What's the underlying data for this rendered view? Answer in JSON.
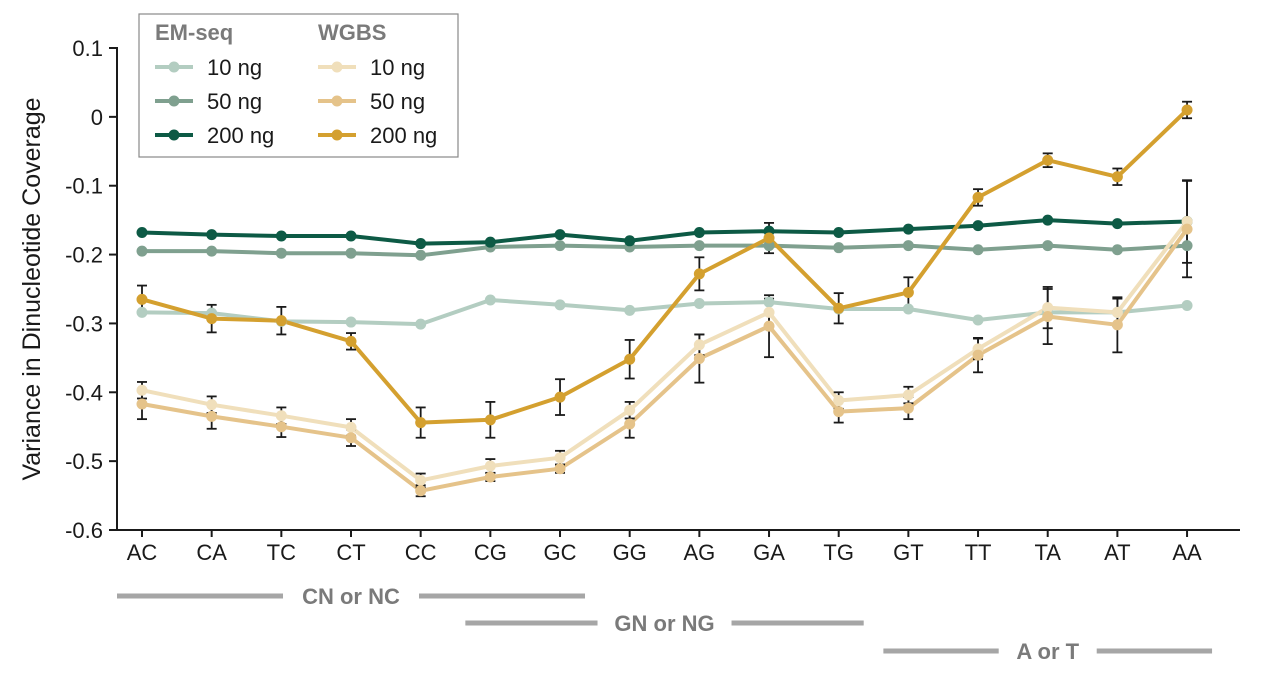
{
  "chart_data": {
    "type": "line",
    "title": "",
    "xlabel": "",
    "ylabel": "Variance in Dinucleotide Coverage",
    "ylim": [
      -0.6,
      0.1
    ],
    "yticks": [
      0.1,
      0,
      -0.1,
      -0.2,
      -0.3,
      -0.4,
      -0.5,
      -0.6
    ],
    "ytick_labels": [
      "0.1",
      "0",
      "-0.1",
      "-0.2",
      "-0.3",
      "-0.4",
      "-0.5",
      "-0.6"
    ],
    "categories": [
      "AC",
      "CA",
      "TC",
      "CT",
      "CC",
      "CG",
      "GC",
      "GG",
      "AG",
      "GA",
      "TG",
      "GT",
      "TT",
      "TA",
      "AT",
      "AA"
    ],
    "legend": {
      "placement": "top-left",
      "groups": [
        {
          "title": "EM-seq",
          "entries": [
            "10 ng",
            "50 ng",
            "200 ng"
          ]
        },
        {
          "title": "WGBS",
          "entries": [
            "10 ng",
            "50 ng",
            "200 ng"
          ]
        }
      ]
    },
    "series": [
      {
        "name": "10 ng",
        "group": "EM-seq",
        "color": "#b3cdc1",
        "values": [
          -0.284,
          -0.285,
          -0.297,
          -0.298,
          -0.301,
          -0.266,
          -0.273,
          -0.281,
          -0.271,
          -0.269,
          -0.279,
          -0.279,
          -0.295,
          -0.284,
          -0.284,
          -0.274
        ],
        "err": [
          0.003,
          0.003,
          0.003,
          0.003,
          0.003,
          0.003,
          0.003,
          0.003,
          0.003,
          0.003,
          0.003,
          0.003,
          0.003,
          0.003,
          0.003,
          0.003
        ]
      },
      {
        "name": "50 ng",
        "group": "EM-seq",
        "color": "#7fa08f",
        "values": [
          -0.195,
          -0.195,
          -0.198,
          -0.198,
          -0.201,
          -0.189,
          -0.187,
          -0.189,
          -0.187,
          -0.187,
          -0.19,
          -0.187,
          -0.193,
          -0.187,
          -0.193,
          -0.187
        ],
        "err": [
          0.003,
          0.003,
          0.003,
          0.003,
          0.003,
          0.003,
          0.003,
          0.003,
          0.003,
          0.003,
          0.003,
          0.003,
          0.003,
          0.003,
          0.003,
          0.003
        ]
      },
      {
        "name": "200 ng",
        "group": "EM-seq",
        "color": "#0d5a45",
        "values": [
          -0.168,
          -0.171,
          -0.173,
          -0.173,
          -0.184,
          -0.182,
          -0.171,
          -0.18,
          -0.168,
          -0.166,
          -0.168,
          -0.163,
          -0.158,
          -0.15,
          -0.155,
          -0.152
        ],
        "err": [
          0.002,
          0.002,
          0.002,
          0.002,
          0.002,
          0.002,
          0.002,
          0.002,
          0.002,
          0.002,
          0.002,
          0.002,
          0.002,
          0.002,
          0.002,
          0.002
        ]
      },
      {
        "name": "10 ng",
        "group": "WGBS",
        "color": "#f0dfbb",
        "values": [
          -0.397,
          -0.418,
          -0.434,
          -0.451,
          -0.528,
          -0.507,
          -0.495,
          -0.426,
          -0.331,
          -0.284,
          -0.412,
          -0.404,
          -0.337,
          -0.277,
          -0.284,
          -0.152
        ],
        "err": [
          0.012,
          0.012,
          0.012,
          0.012,
          0.01,
          0.01,
          0.01,
          0.012,
          0.015,
          0.02,
          0.012,
          0.012,
          0.015,
          0.03,
          0.02,
          0.06
        ]
      },
      {
        "name": "50 ng",
        "group": "WGBS",
        "color": "#e5c38a",
        "values": [
          -0.417,
          -0.435,
          -0.45,
          -0.466,
          -0.543,
          -0.523,
          -0.511,
          -0.446,
          -0.351,
          -0.304,
          -0.428,
          -0.423,
          -0.346,
          -0.29,
          -0.302,
          -0.163
        ],
        "err": [
          0.022,
          0.018,
          0.015,
          0.012,
          0.008,
          0.006,
          0.006,
          0.02,
          0.035,
          0.045,
          0.016,
          0.016,
          0.025,
          0.04,
          0.04,
          0.07
        ]
      },
      {
        "name": "200 ng",
        "group": "WGBS",
        "color": "#d4a02f",
        "values": [
          -0.265,
          -0.293,
          -0.296,
          -0.326,
          -0.444,
          -0.44,
          -0.407,
          -0.352,
          -0.228,
          -0.176,
          -0.278,
          -0.255,
          -0.117,
          -0.063,
          -0.087,
          0.01
        ],
        "err": [
          0.02,
          0.02,
          0.02,
          0.012,
          0.022,
          0.026,
          0.026,
          0.028,
          0.024,
          0.022,
          0.022,
          0.022,
          0.012,
          0.01,
          0.012,
          0.012
        ]
      }
    ],
    "groupings": [
      {
        "label": "CN or NC",
        "from": "AC",
        "to": "GC"
      },
      {
        "label": "GN or NG",
        "from": "CG",
        "to": "TG"
      },
      {
        "label": "A or T",
        "from": "GT",
        "to": "AA"
      }
    ]
  }
}
